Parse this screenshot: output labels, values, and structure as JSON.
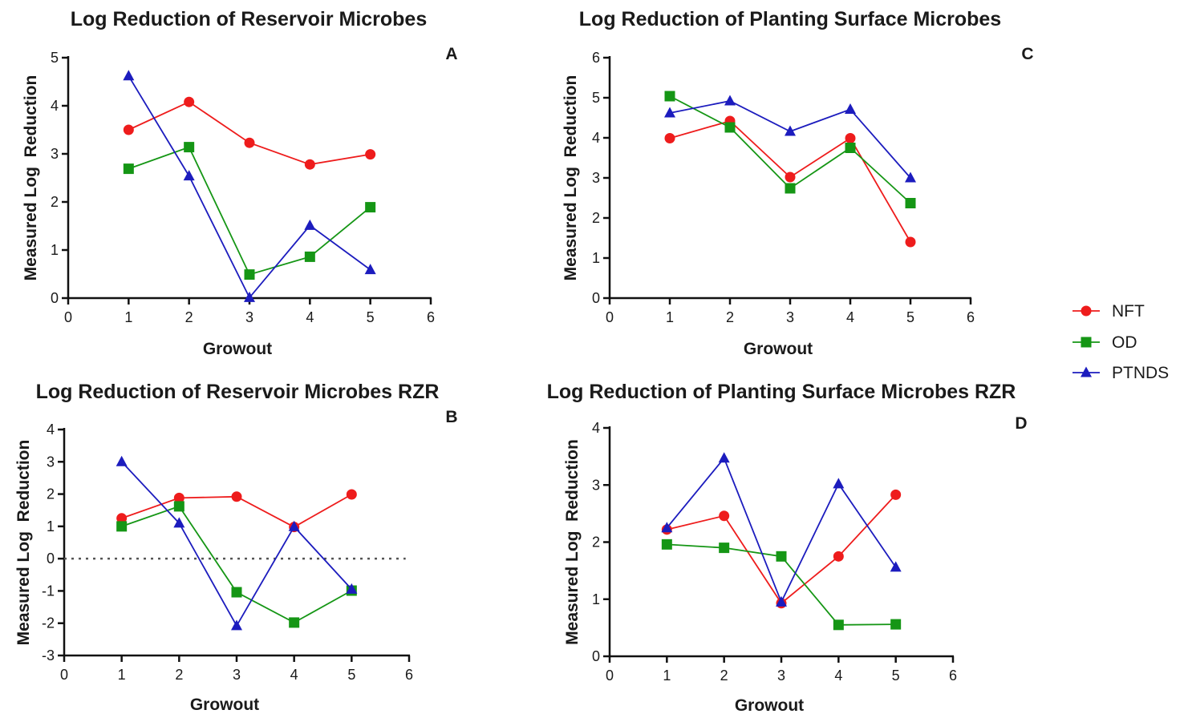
{
  "chart_data": [
    {
      "type": "line",
      "title": "Log Reduction of Reservoir  Microbes",
      "panel_label": "A",
      "xlabel": "Growout",
      "ylabel": "Measured Log  Reduction",
      "xlim": [
        0,
        6
      ],
      "ylim": [
        0,
        5
      ],
      "xticks": [
        "0",
        "1",
        "2",
        "3",
        "4",
        "5",
        "6"
      ],
      "yticks": [
        "0",
        "1",
        "2",
        "3",
        "4",
        "5"
      ],
      "x": [
        1,
        2,
        3,
        4,
        5
      ],
      "zero_line": false,
      "series": [
        {
          "name": "NFT",
          "values": [
            3.5,
            4.08,
            3.23,
            2.78,
            2.99
          ]
        },
        {
          "name": "OD",
          "values": [
            2.69,
            3.14,
            0.49,
            0.86,
            1.89
          ]
        },
        {
          "name": "PTNDS",
          "values": [
            4.62,
            2.54,
            0.01,
            1.51,
            0.59
          ]
        }
      ]
    },
    {
      "type": "line",
      "title": "Log Reduction of Reservoir Microbes RZR",
      "panel_label": "B",
      "xlabel": "Growout",
      "ylabel": "Measured Log  Reduction",
      "xlim": [
        0,
        6
      ],
      "ylim": [
        -3,
        4
      ],
      "xticks": [
        "0",
        "1",
        "2",
        "3",
        "4",
        "5",
        "6"
      ],
      "yticks": [
        "-3",
        "-2",
        "-1",
        "0",
        "1",
        "2",
        "3",
        "4"
      ],
      "x": [
        1,
        2,
        3,
        4,
        5
      ],
      "zero_line": true,
      "series": [
        {
          "name": "NFT",
          "values": [
            1.25,
            1.88,
            1.92,
            0.98,
            1.99
          ]
        },
        {
          "name": "OD",
          "values": [
            1.0,
            1.62,
            -1.04,
            -1.98,
            -0.99
          ]
        },
        {
          "name": "PTNDS",
          "values": [
            3.0,
            1.1,
            -2.08,
            0.99,
            -0.95
          ]
        }
      ]
    },
    {
      "type": "line",
      "title": "Log Reduction of Planting Surface Microbes",
      "panel_label": "C",
      "xlabel": "Growout",
      "ylabel": "Measured Log  Reduction",
      "xlim": [
        0,
        6
      ],
      "ylim": [
        0,
        6
      ],
      "xticks": [
        "0",
        "1",
        "2",
        "3",
        "4",
        "5",
        "6"
      ],
      "yticks": [
        "0",
        "1",
        "2",
        "3",
        "4",
        "5",
        "6"
      ],
      "x": [
        1,
        2,
        3,
        4,
        5
      ],
      "zero_line": false,
      "series": [
        {
          "name": "NFT",
          "values": [
            3.99,
            4.42,
            3.02,
            3.99,
            1.4
          ]
        },
        {
          "name": "OD",
          "values": [
            5.04,
            4.26,
            2.74,
            3.75,
            2.37
          ]
        },
        {
          "name": "PTNDS",
          "values": [
            4.62,
            4.92,
            4.16,
            4.71,
            3.0
          ]
        }
      ]
    },
    {
      "type": "line",
      "title": "Log Reduction of Planting Surface Microbes RZR",
      "panel_label": "D",
      "xlabel": "Growout",
      "ylabel": "Measured Log  Reduction",
      "xlim": [
        0,
        6
      ],
      "ylim": [
        0,
        4
      ],
      "xticks": [
        "0",
        "1",
        "2",
        "3",
        "4",
        "5",
        "6"
      ],
      "yticks": [
        "0",
        "1",
        "2",
        "3",
        "4"
      ],
      "x": [
        1,
        2,
        3,
        4,
        5
      ],
      "zero_line": false,
      "series": [
        {
          "name": "NFT",
          "values": [
            2.22,
            2.46,
            0.93,
            1.75,
            2.83
          ]
        },
        {
          "name": "OD",
          "values": [
            1.96,
            1.9,
            1.75,
            0.55,
            0.56
          ]
        },
        {
          "name": "PTNDS",
          "values": [
            2.25,
            3.47,
            0.95,
            3.02,
            1.56
          ]
        }
      ]
    }
  ],
  "legend": {
    "items": [
      {
        "name": "NFT",
        "color": "#ee1c1c",
        "marker": "circle"
      },
      {
        "name": "OD",
        "color": "#159615",
        "marker": "square"
      },
      {
        "name": "PTNDS",
        "color": "#1c1cbe",
        "marker": "triangle"
      }
    ]
  },
  "colors": {
    "NFT": "#ee1c1c",
    "OD": "#159615",
    "PTNDS": "#1c1cbe",
    "axis": "#111111",
    "zero_line": "#555555"
  }
}
